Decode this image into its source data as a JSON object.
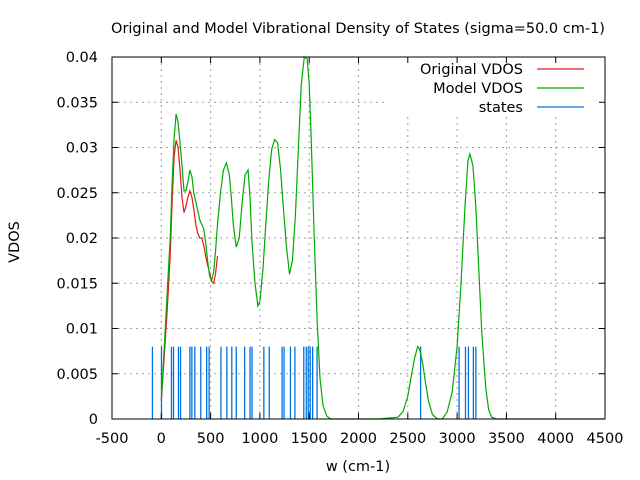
{
  "chart_data": {
    "type": "line",
    "title": "Original and Model Vibrational Density of States (sigma=50.0 cm-1)",
    "xlabel": "w (cm-1)",
    "ylabel": "VDOS",
    "xlim": [
      -500,
      4500
    ],
    "ylim": [
      0,
      0.04
    ],
    "xticks": [
      "-500",
      "0",
      "500",
      "1000",
      "1500",
      "2000",
      "2500",
      "3000",
      "3500",
      "4000",
      "4500"
    ],
    "xtick_values": [
      -500,
      0,
      500,
      1000,
      1500,
      2000,
      2500,
      3000,
      3500,
      4000,
      4500
    ],
    "yticks": [
      "0",
      "0.005",
      "0.01",
      "0.015",
      "0.02",
      "0.025",
      "0.03",
      "0.035",
      "0.04"
    ],
    "ytick_values": [
      0,
      0.005,
      0.01,
      0.015,
      0.02,
      0.025,
      0.03,
      0.035,
      0.04
    ],
    "grid": true,
    "legend_position": "top-right",
    "series": [
      {
        "name": "Original VDOS",
        "color": "#e41a1c",
        "x": [
          0,
          30,
          60,
          90,
          110,
          130,
          150,
          170,
          190,
          210,
          230,
          250,
          270,
          290,
          310,
          330,
          350,
          370,
          390,
          410,
          430,
          450,
          470,
          490,
          510,
          530,
          550,
          570
        ],
        "y": [
          0.002,
          0.007,
          0.012,
          0.018,
          0.024,
          0.029,
          0.0308,
          0.03,
          0.0275,
          0.0245,
          0.0228,
          0.0235,
          0.0245,
          0.0252,
          0.0245,
          0.0232,
          0.0215,
          0.0205,
          0.02,
          0.02,
          0.0192,
          0.018,
          0.017,
          0.0162,
          0.0152,
          0.015,
          0.016,
          0.018
        ]
      },
      {
        "name": "Model VDOS",
        "color": "#00aa00",
        "x": [
          0,
          30,
          60,
          90,
          110,
          130,
          150,
          170,
          190,
          210,
          230,
          250,
          270,
          290,
          310,
          330,
          350,
          370,
          390,
          410,
          430,
          450,
          470,
          490,
          510,
          530,
          550,
          570,
          600,
          630,
          660,
          690,
          710,
          730,
          760,
          790,
          820,
          850,
          880,
          900,
          920,
          950,
          980,
          1000,
          1030,
          1060,
          1090,
          1120,
          1150,
          1180,
          1210,
          1240,
          1270,
          1300,
          1330,
          1360,
          1390,
          1420,
          1450,
          1480,
          1500,
          1520,
          1550,
          1580,
          1610,
          1640,
          1680,
          1720,
          1760,
          1800,
          2200,
          2400,
          2450,
          2500,
          2540,
          2570,
          2600,
          2620,
          2650,
          2680,
          2710,
          2750,
          2800,
          2850,
          2900,
          2950,
          3000,
          3040,
          3080,
          3110,
          3130,
          3160,
          3190,
          3220,
          3250,
          3290,
          3320,
          3350,
          3400,
          4500
        ],
        "y": [
          0.002,
          0.008,
          0.014,
          0.02,
          0.026,
          0.031,
          0.0337,
          0.0328,
          0.0305,
          0.028,
          0.0252,
          0.0252,
          0.0262,
          0.0275,
          0.0268,
          0.025,
          0.024,
          0.023,
          0.022,
          0.0215,
          0.021,
          0.0195,
          0.0175,
          0.0158,
          0.0153,
          0.0162,
          0.0185,
          0.0215,
          0.025,
          0.0275,
          0.0283,
          0.027,
          0.0245,
          0.0215,
          0.019,
          0.02,
          0.024,
          0.027,
          0.0275,
          0.0245,
          0.0195,
          0.015,
          0.0125,
          0.013,
          0.0165,
          0.0215,
          0.0265,
          0.0298,
          0.0309,
          0.0305,
          0.0275,
          0.023,
          0.019,
          0.016,
          0.0175,
          0.0225,
          0.03,
          0.037,
          0.04,
          0.0398,
          0.037,
          0.031,
          0.0205,
          0.011,
          0.0045,
          0.0015,
          0.0003,
          0.0,
          0.0,
          0.0,
          0.0,
          0.0002,
          0.0008,
          0.0025,
          0.005,
          0.0068,
          0.008,
          0.0077,
          0.0062,
          0.004,
          0.002,
          0.0005,
          0.0,
          0.0,
          0.0008,
          0.003,
          0.008,
          0.015,
          0.0235,
          0.0285,
          0.0293,
          0.028,
          0.0235,
          0.0165,
          0.0095,
          0.0035,
          0.001,
          0.0002,
          0.0,
          0.0
        ]
      },
      {
        "name": "states",
        "color": "#0072e0",
        "style": "impulses",
        "height": 0.008,
        "x": [
          -90,
          2,
          103,
          124,
          174,
          195,
          290,
          310,
          340,
          400,
          460,
          485,
          605,
          665,
          715,
          760,
          845,
          900,
          920,
          1040,
          1095,
          1225,
          1245,
          1310,
          1355,
          1445,
          1470,
          1490,
          1510,
          1535,
          1580,
          2630,
          3020,
          3085,
          3115,
          3165,
          3190
        ]
      }
    ]
  }
}
